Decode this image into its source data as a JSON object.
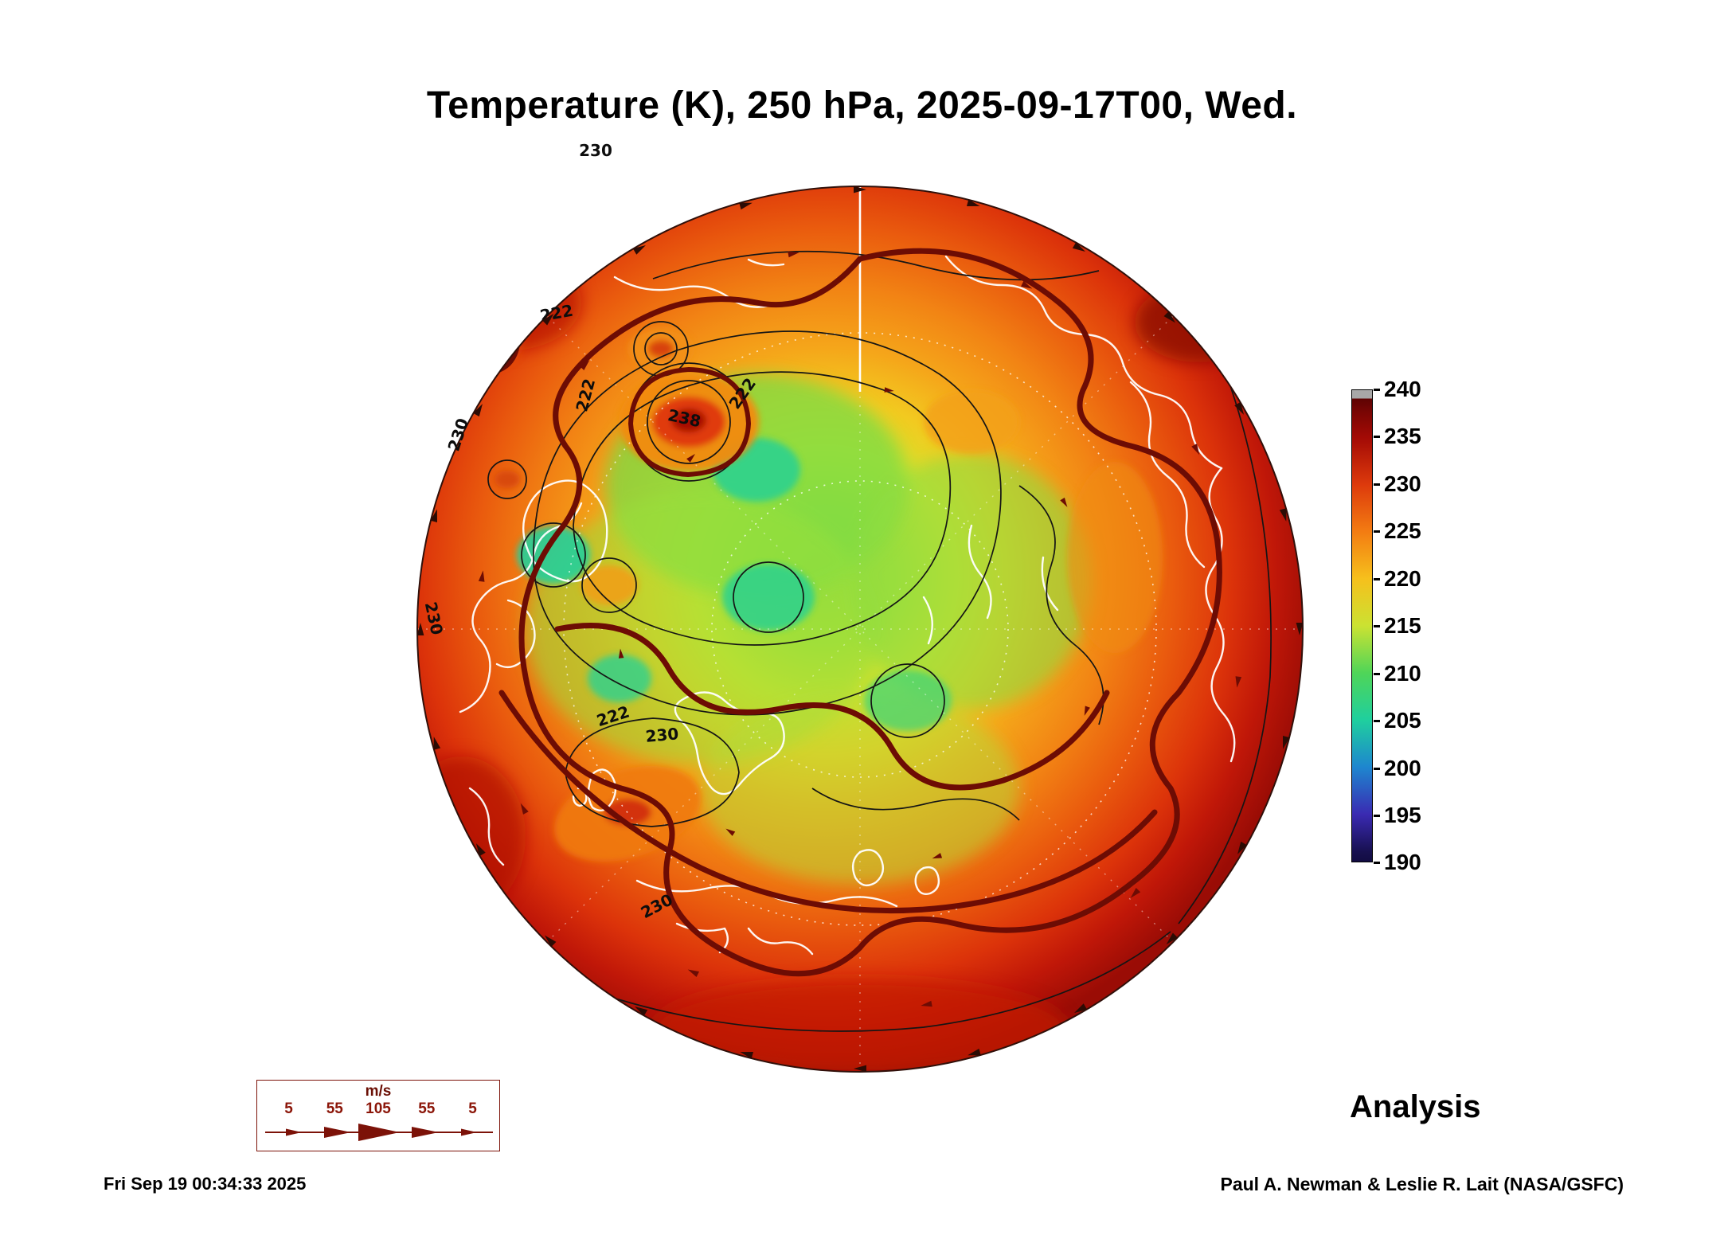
{
  "title": "Temperature (K), 250 hPa, 2025-09-17T00, Wed.",
  "annotation": {
    "analysis": "Analysis"
  },
  "footer": {
    "timestamp": "Fri Sep 19 00:34:33 2025",
    "credit": "Paul A. Newman & Leslie R. Lait (NASA/GSFC)"
  },
  "colorbar": {
    "ticks": [
      "240",
      "235",
      "230",
      "225",
      "220",
      "215",
      "210",
      "205",
      "200",
      "195",
      "190"
    ],
    "gradient_stops": [
      "#a8a8a8 0%",
      "#a8a8a8 1.8%",
      "#5e0303 1.8%",
      "#7c0604 5%",
      "#a30a05 10%",
      "#dd3a0c 20%",
      "#f37c12 30%",
      "#f6c01c 40%",
      "#cbe232 50%",
      "#4fd558 60%",
      "#1fcf9e 70%",
      "#1e86cf 80%",
      "#3a2ab2 90%",
      "#17104f 98%",
      "#120c42 100%"
    ]
  },
  "wind_legend": {
    "units": "m/s",
    "values": [
      "5",
      "55",
      "105",
      "55",
      "5"
    ]
  },
  "map": {
    "contour_labels": [
      "230",
      "222",
      "222",
      "222",
      "238",
      "230",
      "230",
      "222",
      "230",
      "230"
    ]
  },
  "colors": {
    "maroon": "#7c1208",
    "thick_contour": "#6d0c04",
    "thin_contour": "#151515",
    "coastline": "#ffffff"
  },
  "chart_data": {
    "type": "heatmap",
    "title": "Temperature (K), 250 hPa, 2025-09-17T00, Wed.",
    "field": "Temperature",
    "units": "K",
    "level_hPa": 250,
    "valid_time": "2025-09-17T00",
    "projection": "north polar stereographic (Northern Hemisphere)",
    "colorbar_range": [
      190,
      240
    ],
    "colorbar_ticks": [
      240,
      235,
      230,
      225,
      220,
      215,
      210,
      205,
      200,
      195,
      190
    ],
    "contour_labels_visible": [
      222,
      230,
      238
    ],
    "thick_contour_value": 230,
    "wind_scale_ms": [
      5,
      55,
      105,
      55,
      5
    ],
    "annotations": [
      "Analysis"
    ],
    "description": "Filled temperature field at 250 hPa: cold core ~205-218 K (green/teal) over the polar cap, warm ring ~228-240 K (orange/dark red) at the outer latitudes, warm anomaly ~238 K near the pole; black temperature contours every 4 K with thick maroon 230 K contour; white coastlines and dotted graticule; wind arrows along contours."
  }
}
